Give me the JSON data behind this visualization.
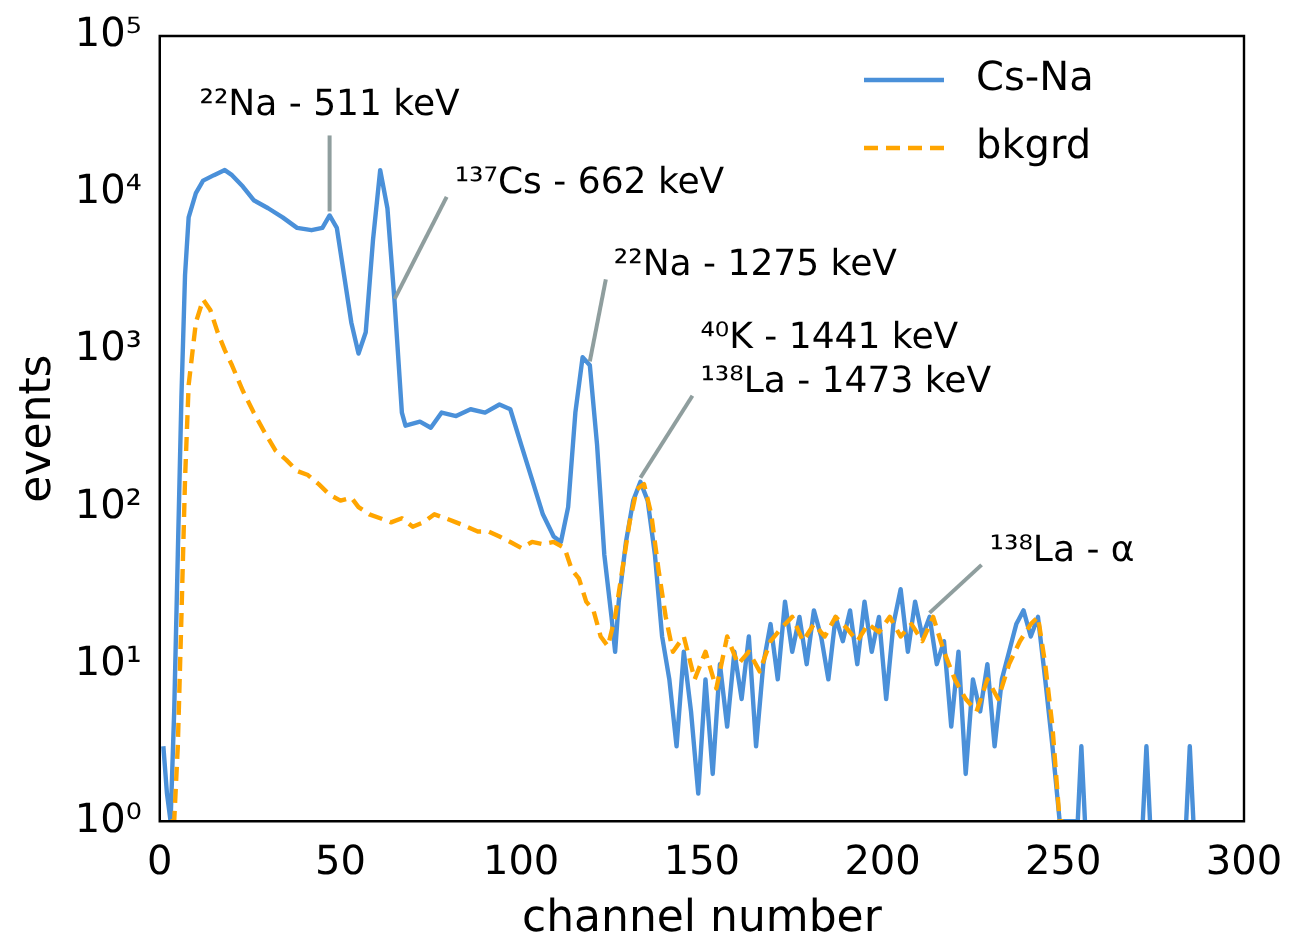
{
  "chart_data": {
    "type": "line",
    "xlabel": "channel number",
    "ylabel": "events",
    "log": "y",
    "legend": "top right",
    "xlim": [
      0,
      300
    ],
    "xticks": [
      0,
      50,
      100,
      150,
      200,
      250,
      300
    ],
    "ylim": [
      1,
      100000
    ],
    "yticks": [
      {
        "value": 1,
        "label": "10⁰"
      },
      {
        "value": 10,
        "label": "10¹"
      },
      {
        "value": 100,
        "label": "10²"
      },
      {
        "value": 1000,
        "label": "10³"
      },
      {
        "value": 10000,
        "label": "10⁴"
      },
      {
        "value": 100000,
        "label": "10⁵"
      }
    ],
    "annotations": [
      {
        "text": "²²Na - 511 keV",
        "x": 47,
        "y": 7200
      },
      {
        "text": "¹³⁷Cs - 662 keV",
        "x": 65,
        "y": 2000
      },
      {
        "text": "²²Na - 1275 keV",
        "x": 119,
        "y": 800
      },
      {
        "text": "⁴⁰K - 1441 keV\n¹³⁸La - 1473 keV",
        "x": 133,
        "y": 145
      },
      {
        "text": "¹³⁸La - α",
        "x": 213,
        "y": 20
      }
    ],
    "series": [
      {
        "name": "Cs-Na",
        "color": "#4a90d9",
        "line_style": "solid",
        "x": [
          1,
          2,
          3,
          4,
          5,
          6,
          7,
          8,
          10,
          12,
          15,
          18,
          20,
          23,
          26,
          30,
          34,
          38,
          42,
          45,
          47,
          49,
          51,
          53,
          55,
          57,
          59,
          61,
          63,
          65,
          67,
          68,
          72,
          75,
          78,
          82,
          86,
          90,
          94,
          97,
          100,
          103,
          106,
          109,
          111,
          113,
          115,
          117,
          119,
          121,
          123,
          125,
          126,
          127,
          129,
          131,
          133,
          135,
          137,
          139,
          141,
          143,
          145,
          147,
          149,
          151,
          153,
          155,
          157,
          159,
          161,
          163,
          165,
          167,
          169,
          171,
          173,
          175,
          177,
          179,
          181,
          183,
          185,
          187,
          189,
          191,
          193,
          195,
          197,
          199,
          201,
          203,
          205,
          207,
          209,
          211,
          213,
          215,
          217,
          219,
          221,
          223,
          225,
          227,
          229,
          231,
          233,
          235,
          237,
          239,
          241,
          243,
          245,
          247,
          249,
          254,
          255,
          256,
          257,
          272,
          273,
          274,
          275,
          284,
          285,
          286
        ],
        "values": [
          3,
          1.5,
          1,
          5,
          50,
          500,
          3000,
          7000,
          10000,
          12000,
          13000,
          14000,
          13000,
          11000,
          9000,
          8000,
          7000,
          6000,
          5800,
          6000,
          7200,
          6000,
          3000,
          1500,
          950,
          1300,
          5000,
          14000,
          8000,
          2000,
          400,
          330,
          350,
          320,
          400,
          380,
          420,
          400,
          450,
          420,
          250,
          150,
          90,
          65,
          60,
          100,
          400,
          900,
          800,
          250,
          50,
          20,
          12,
          25,
          60,
          110,
          145,
          110,
          50,
          15,
          8,
          3,
          12,
          5,
          1.5,
          8,
          2,
          10,
          4,
          12,
          6,
          15,
          3,
          10,
          18,
          8,
          25,
          12,
          20,
          10,
          22,
          15,
          8,
          20,
          14,
          22,
          10,
          25,
          12,
          20,
          6,
          18,
          30,
          12,
          25,
          15,
          20,
          10,
          14,
          4,
          12,
          2,
          8,
          5,
          10,
          3,
          8,
          12,
          18,
          22,
          15,
          20,
          8,
          3,
          1,
          1,
          3,
          1,
          null,
          1,
          3,
          1,
          null,
          1,
          3,
          1
        ]
      },
      {
        "name": "bkgrd",
        "color": "#ffa500",
        "line_style": "dashed",
        "x": [
          3,
          4,
          5,
          6,
          7,
          8,
          10,
          12,
          14,
          16,
          18,
          20,
          23,
          26,
          29,
          32,
          35,
          38,
          41,
          44,
          47,
          50,
          53,
          55,
          58,
          61,
          64,
          67,
          70,
          73,
          76,
          79,
          82,
          85,
          88,
          91,
          94,
          97,
          100,
          103,
          106,
          109,
          112,
          114,
          116,
          118,
          120,
          122,
          124,
          126,
          128,
          130,
          132,
          134,
          136,
          138,
          140,
          142,
          145,
          148,
          151,
          154,
          157,
          160,
          163,
          166,
          169,
          172,
          175,
          178,
          181,
          184,
          187,
          190,
          193,
          196,
          199,
          202,
          205,
          208,
          211,
          214,
          217,
          220,
          223,
          226,
          229,
          232,
          235,
          238,
          241,
          243,
          245,
          247,
          249,
          250
        ],
        "values": [
          1,
          1,
          3,
          20,
          150,
          600,
          1500,
          2100,
          1800,
          1300,
          1000,
          800,
          550,
          400,
          300,
          230,
          200,
          170,
          160,
          140,
          120,
          110,
          115,
          100,
          90,
          85,
          80,
          85,
          75,
          80,
          90,
          85,
          80,
          75,
          70,
          70,
          65,
          60,
          55,
          60,
          58,
          60,
          55,
          40,
          35,
          25,
          22,
          15,
          13,
          20,
          40,
          80,
          130,
          140,
          90,
          40,
          20,
          12,
          15,
          8,
          12,
          7,
          15,
          10,
          12,
          9,
          14,
          17,
          20,
          14,
          18,
          15,
          20,
          17,
          14,
          18,
          16,
          20,
          15,
          18,
          14,
          20,
          12,
          8,
          6,
          5,
          8,
          6,
          10,
          14,
          18,
          20,
          10,
          4,
          1,
          1
        ]
      }
    ]
  }
}
